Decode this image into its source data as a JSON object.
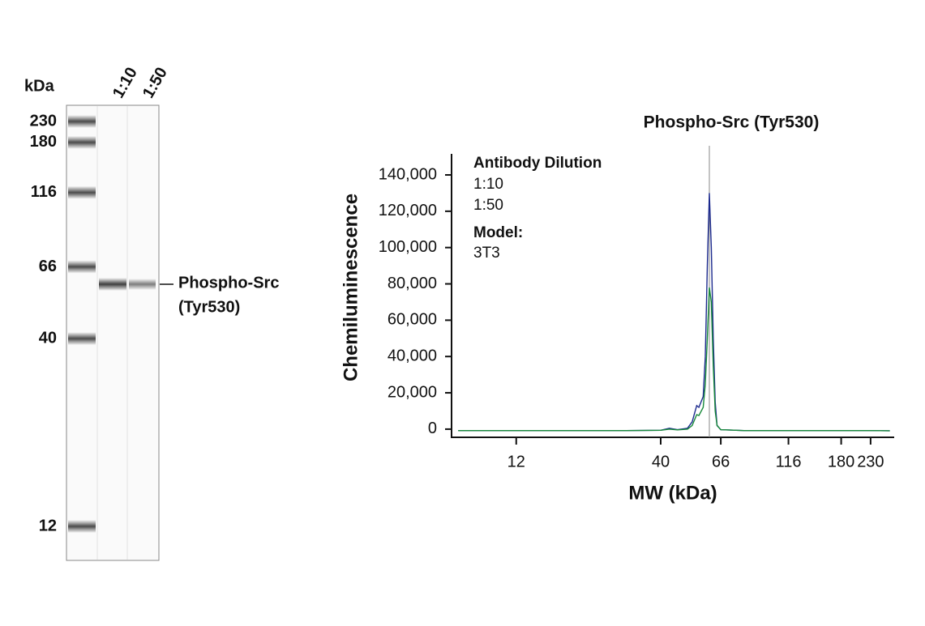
{
  "chart_data": [
    {
      "type": "blot",
      "y_axis_label": "kDa",
      "markers": [
        230,
        180,
        116,
        66,
        40,
        12
      ],
      "lanes": [
        "1:10",
        "1:50"
      ],
      "band_label": [
        "Phospho-Src",
        "(Tyr530)"
      ]
    },
    {
      "type": "line",
      "title": "Phospho-Src (Tyr530)",
      "x_label": "MW (kDa)",
      "y_label": "Chemiluminescence",
      "legend_title": "Antibody Dilution",
      "model_label": "Model:",
      "model": "3T3",
      "x_log": true,
      "xlim": [
        7,
        280
      ],
      "xticks": [
        12,
        40,
        66,
        116,
        180,
        230
      ],
      "ylim": [
        -4500,
        151600
      ],
      "yticks": [
        0,
        {
          "value": 20000,
          "label": "20,000"
        },
        {
          "value": 40000,
          "label": "40,000"
        },
        {
          "value": 60000,
          "label": "60,000"
        },
        {
          "value": 80000,
          "label": "80,000"
        },
        {
          "value": 100000,
          "label": "100,000"
        },
        {
          "value": 120000,
          "label": "120,000"
        },
        {
          "value": 140000,
          "label": "140,000"
        }
      ],
      "vline": 60,
      "x": [
        7.4,
        12,
        30,
        40,
        43,
        46,
        50,
        52,
        54,
        55,
        57,
        58,
        59,
        60,
        61,
        62,
        63,
        64,
        66,
        80,
        230,
        270
      ],
      "series": [
        {
          "name": "1:10",
          "color": "#1c2a8e",
          "values": [
            -800,
            -800,
            -800,
            -600,
            500,
            -300,
            500,
            4000,
            13000,
            12000,
            18000,
            40000,
            90000,
            130000,
            100000,
            50000,
            15000,
            2000,
            -300,
            -800,
            -800,
            -900
          ]
        },
        {
          "name": "1:50",
          "color": "#17893a",
          "values": [
            -800,
            -800,
            -800,
            -600,
            0,
            -400,
            0,
            2000,
            8000,
            7500,
            12000,
            25000,
            50000,
            78000,
            70000,
            35000,
            10000,
            2000,
            -300,
            -800,
            -800,
            -900
          ]
        }
      ]
    }
  ]
}
